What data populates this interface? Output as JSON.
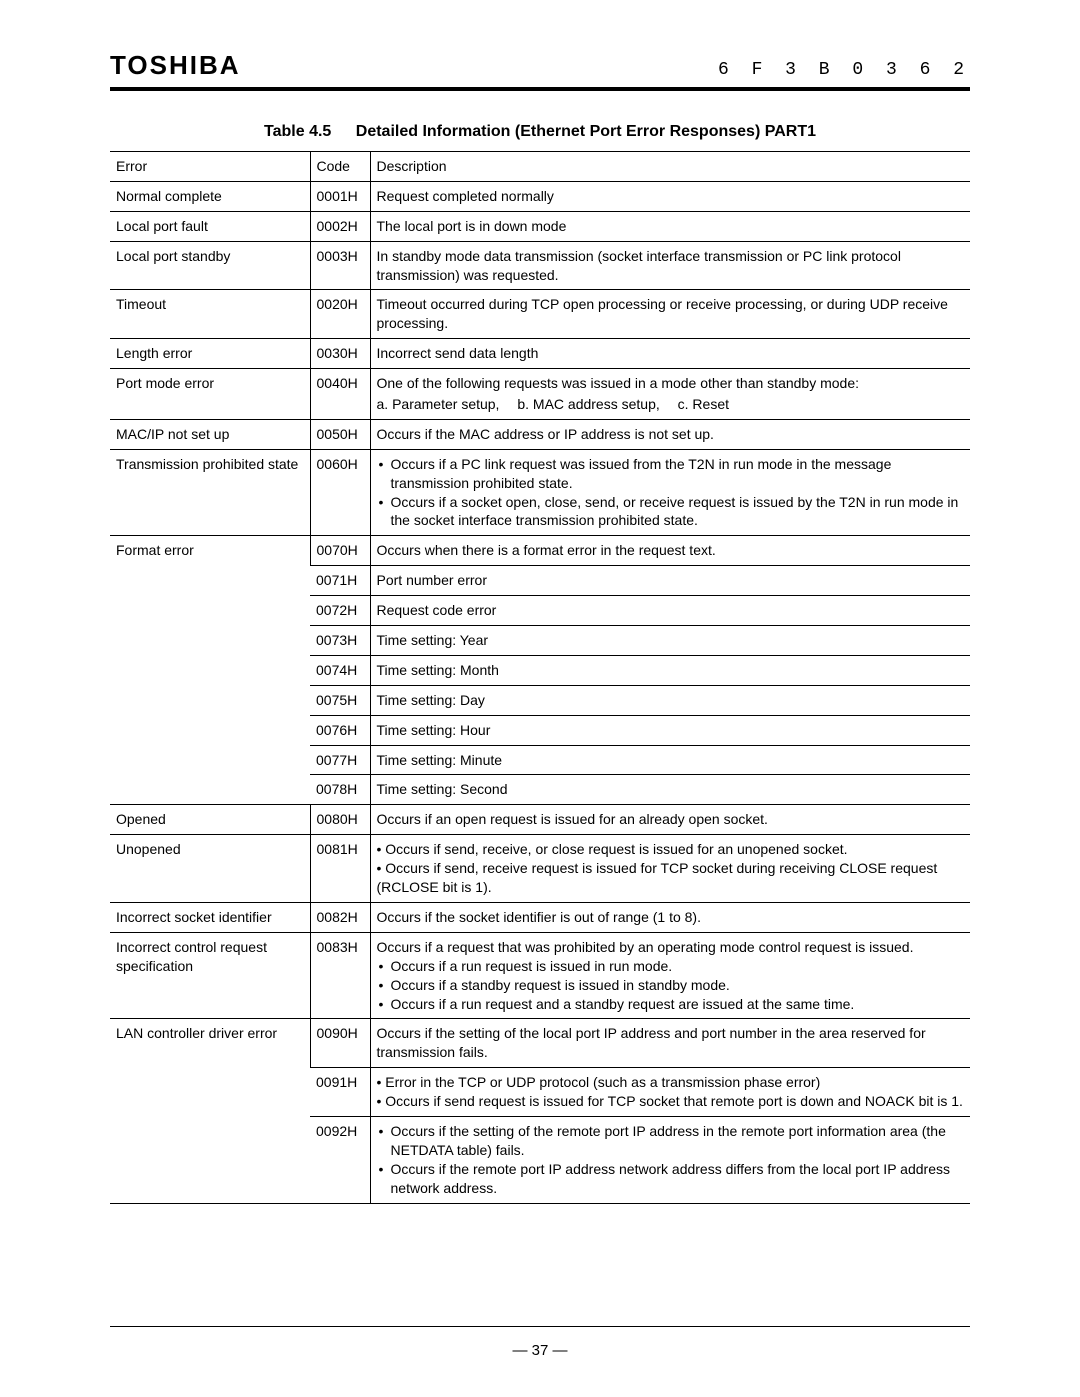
{
  "header": {
    "brand": "TOSHIBA",
    "docnum": "6 F 3 B 0 3 6 2"
  },
  "caption": {
    "num": "Table 4.5",
    "title": "Detailed Information (Ethernet Port Error Responses) PART1"
  },
  "cols": {
    "error": "Error",
    "code": "Code",
    "desc": "Description"
  },
  "rows": {
    "normal": {
      "err": "Normal complete",
      "code": "0001H",
      "desc": "Request completed normally"
    },
    "lpfault": {
      "err": "Local port fault",
      "code": "0002H",
      "desc": "The local port is in down mode"
    },
    "lpstdby": {
      "err": "Local port standby",
      "code": "0003H",
      "desc": "In standby mode data transmission (socket interface transmission or PC link protocol transmission) was requested."
    },
    "timeout": {
      "err": "Timeout",
      "code": "0020H",
      "desc": "Timeout occurred during TCP open processing or receive processing, or during UDP receive processing."
    },
    "lenerr": {
      "err": "Length error",
      "code": "0030H",
      "desc": "Incorrect send data length"
    },
    "pmode": {
      "err": "Port mode error",
      "code": "0040H",
      "lead": "One of the following requests was issued in a mode other than standby mode:",
      "opts": {
        "a": "a. Parameter setup,",
        "b": "b. MAC address setup,",
        "c": "c. Reset"
      }
    },
    "macip": {
      "err": "MAC/IP not set up",
      "code": "0050H",
      "desc": "Occurs if the MAC address or IP address is not set up."
    },
    "txprohib": {
      "err": "Transmission prohibited state",
      "code": "0060H",
      "b1": "Occurs if a PC link request was issued from the T2N in run mode in the message transmission prohibited state.",
      "b2": "Occurs if a socket open, close, send, or receive request is issued by the T2N in run mode in the socket interface transmission prohibited state."
    },
    "format": {
      "err": "Format error",
      "r0": {
        "code": "0070H",
        "desc": "Occurs when there is a format error in the request text."
      },
      "r1": {
        "code": "0071H",
        "desc": "Port number error"
      },
      "r2": {
        "code": "0072H",
        "desc": "Request code error"
      },
      "r3": {
        "code": "0073H",
        "desc": "Time setting: Year"
      },
      "r4": {
        "code": "0074H",
        "desc": "Time setting: Month"
      },
      "r5": {
        "code": "0075H",
        "desc": "Time setting: Day"
      },
      "r6": {
        "code": "0076H",
        "desc": "Time setting: Hour"
      },
      "r7": {
        "code": "0077H",
        "desc": "Time setting: Minute"
      },
      "r8": {
        "code": "0078H",
        "desc": "Time setting: Second"
      }
    },
    "opened": {
      "err": "Opened",
      "code": "0080H",
      "desc": "Occurs if an open request is issued for an already open socket."
    },
    "unopened": {
      "err": "Unopened",
      "code": "0081H",
      "b1": "Occurs if send, receive, or close request is issued for an unopened socket.",
      "b2": "Occurs if send, receive request is issued for TCP socket during receiving CLOSE request (RCLOSE bit is 1)."
    },
    "sockid": {
      "err": "Incorrect socket identifier",
      "code": "0082H",
      "desc": "Occurs if the socket identifier is out of range (1 to 8)."
    },
    "ctrlreq": {
      "err": "Incorrect control request specification",
      "code": "0083H",
      "lead": "Occurs if a request that was prohibited by an operating mode control request is issued.",
      "b1": "Occurs if a run request is issued in run mode.",
      "b2": "Occurs if a standby request is issued in standby mode.",
      "b3": "Occurs if a run request and a standby request are issued at the same time."
    },
    "landrv": {
      "err": "LAN controller driver error",
      "r0": {
        "code": "0090H",
        "desc": "Occurs if the setting of the local port IP address and port number in the area reserved for transmission fails."
      },
      "r1": {
        "code": "0091H",
        "b1": "Error in the TCP or UDP protocol (such as a transmission phase error)",
        "b2": "Occurs if send request is issued for TCP socket that remote port is down and NOACK bit is 1."
      },
      "r2": {
        "code": "0092H",
        "b1": "Occurs if the setting of the remote port IP address in the remote port information area (the NETDATA table) fails.",
        "b2": "Occurs if the remote port IP address network address differs from the local port IP address network address."
      }
    }
  },
  "pagenum": "— 37 —"
}
